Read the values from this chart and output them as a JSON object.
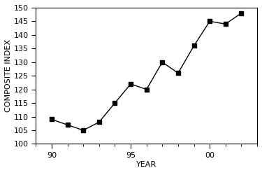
{
  "years": [
    90,
    91,
    92,
    93,
    94,
    95,
    96,
    97,
    98,
    99,
    100,
    101,
    102
  ],
  "values": [
    109,
    107,
    105,
    108,
    115,
    122,
    120,
    130,
    126,
    136,
    145,
    144,
    148
  ],
  "xlim": [
    89,
    103
  ],
  "ylim": [
    100,
    150
  ],
  "yticks": [
    100,
    105,
    110,
    115,
    120,
    125,
    130,
    135,
    140,
    145,
    150
  ],
  "xticks_major": [
    90,
    95,
    100
  ],
  "xtick_labels": [
    "90",
    "95",
    "00"
  ],
  "xlabel": "YEAR",
  "ylabel": "COMPOSITE INDEX",
  "line_color": "#000000",
  "marker": "s",
  "marker_size": 4,
  "bg_color": "#ffffff",
  "title": ""
}
